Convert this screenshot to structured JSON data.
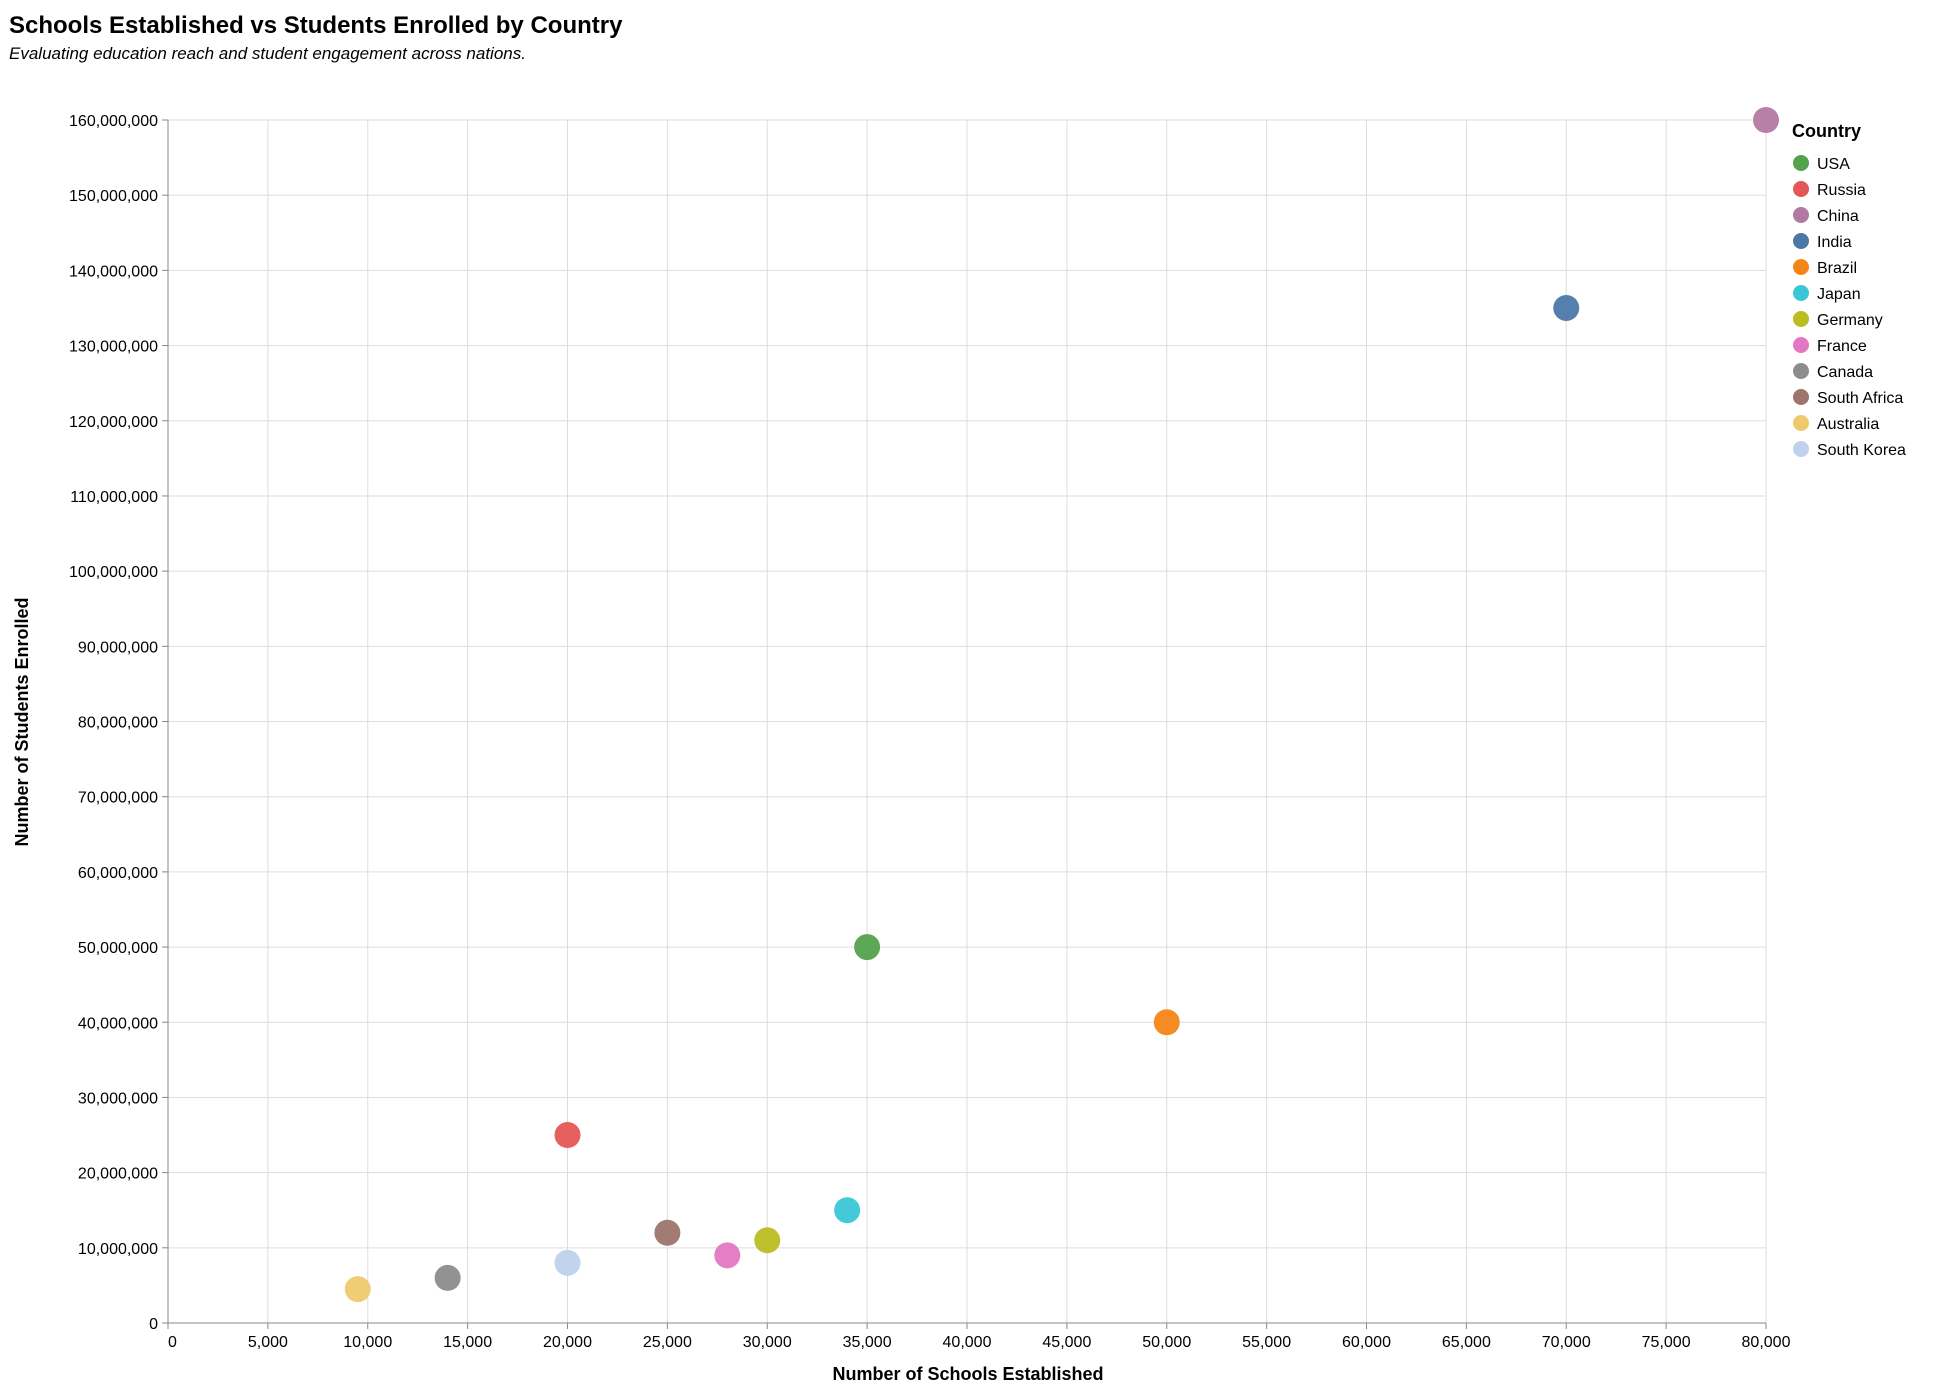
{
  "chart_data": {
    "type": "scatter",
    "title": "Schools Established vs Students Enrolled by Country",
    "subtitle": "Evaluating education reach and student engagement across nations.",
    "xlabel": "Number of Schools Established",
    "ylabel": "Number of Students Enrolled",
    "xlim": [
      0,
      80000
    ],
    "ylim": [
      0,
      160000000
    ],
    "x_ticks": [
      0,
      5000,
      10000,
      15000,
      20000,
      25000,
      30000,
      35000,
      40000,
      45000,
      50000,
      55000,
      60000,
      65000,
      70000,
      75000,
      80000
    ],
    "y_ticks": [
      0,
      10000000,
      20000000,
      30000000,
      40000000,
      50000000,
      60000000,
      70000000,
      80000000,
      90000000,
      100000000,
      110000000,
      120000000,
      130000000,
      140000000,
      150000000,
      160000000
    ],
    "x_tick_labels": [
      "0",
      "5,000",
      "10,000",
      "15,000",
      "20,000",
      "25,000",
      "30,000",
      "35,000",
      "40,000",
      "45,000",
      "50,000",
      "55,000",
      "60,000",
      "65,000",
      "70,000",
      "75,000",
      "80,000"
    ],
    "y_tick_labels": [
      "0",
      "10,000,000",
      "20,000,000",
      "30,000,000",
      "40,000,000",
      "50,000,000",
      "60,000,000",
      "70,000,000",
      "80,000,000",
      "90,000,000",
      "100,000,000",
      "110,000,000",
      "120,000,000",
      "130,000,000",
      "140,000,000",
      "150,000,000",
      "160,000,000"
    ],
    "grid": true,
    "legend": {
      "title": "Country",
      "placement": "right"
    },
    "series": [
      {
        "name": "USA",
        "color": "#54a24b",
        "x": 35000,
        "y": 50000000
      },
      {
        "name": "Russia",
        "color": "#e45756",
        "x": 20000,
        "y": 25000000
      },
      {
        "name": "China",
        "color": "#b279a2",
        "x": 80000,
        "y": 160000000
      },
      {
        "name": "India",
        "color": "#4c78a8",
        "x": 70000,
        "y": 135000000
      },
      {
        "name": "Brazil",
        "color": "#f58518",
        "x": 50000,
        "y": 40000000
      },
      {
        "name": "Japan",
        "color": "#3ac6d6",
        "x": 34000,
        "y": 15000000
      },
      {
        "name": "Germany",
        "color": "#bcbd22",
        "x": 30000,
        "y": 11000000
      },
      {
        "name": "France",
        "color": "#e377c2",
        "x": 28000,
        "y": 9000000
      },
      {
        "name": "Canada",
        "color": "#8c8c8c",
        "x": 14000,
        "y": 6000000
      },
      {
        "name": "South Africa",
        "color": "#9d756d",
        "x": 25000,
        "y": 12000000
      },
      {
        "name": "Australia",
        "color": "#eeca6d",
        "x": 9500,
        "y": 4500000
      },
      {
        "name": "South Korea",
        "color": "#bfd1ec",
        "x": 20000,
        "y": 8000000
      }
    ]
  }
}
